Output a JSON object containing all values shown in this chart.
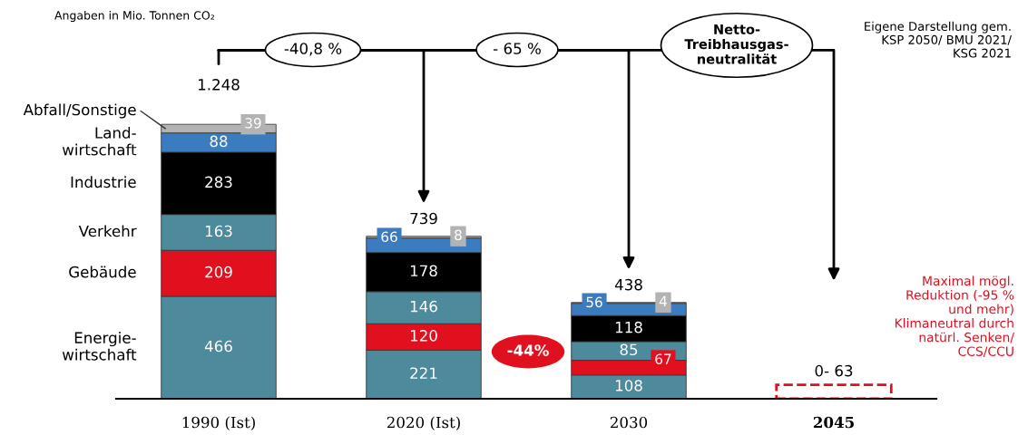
{
  "chart_data": {
    "type": "bar",
    "stacked": true,
    "categories": [
      "1990 (Ist)",
      "2020 (Ist)",
      "2030",
      "2045"
    ],
    "series": [
      {
        "name": "Energie-\nwirtschaft",
        "color": "#4d8a9c",
        "values": [
          466,
          221,
          108,
          null
        ]
      },
      {
        "name": "Gebäude",
        "color": "#e1101f",
        "values": [
          209,
          120,
          67,
          null
        ]
      },
      {
        "name": "Verkehr",
        "color": "#4d8a9c",
        "values": [
          163,
          146,
          85,
          null
        ]
      },
      {
        "name": "Industrie",
        "color": "#000000",
        "values": [
          283,
          178,
          118,
          null
        ]
      },
      {
        "name": "Land-\nwirtschaft",
        "color": "#3a7cbf",
        "values": [
          88,
          66,
          56,
          null
        ]
      },
      {
        "name": "Abfall/Sonstige",
        "color": "#b3b3b3",
        "values": [
          39,
          8,
          4,
          null
        ]
      },
      {
        "color": "#e1101f",
        "values": [
          null,
          null,
          null,
          63
        ],
        "value_labels": [
          null,
          null,
          null,
          "0- 63"
        ],
        "line_style": "dashed"
      }
    ],
    "data_labels": true,
    "totals": [
      "1.248",
      "739",
      "438",
      null
    ],
    "tick_labels": "x",
    "legend": "left",
    "annotations": [
      "Angaben in Mio. Tonnen CO₂",
      "Eigene Darstellung gem.\nKSP 2050/ BMU 2021/\nKSG 2021",
      "-40,8 %",
      "- 65 %",
      "Netto-\nTreibhausgas-\nneutralität",
      "-44%",
      "Maximal mögl.\nReduktion (-95 %\nund mehr)\nKlimaneutral durch\nnatürl. Senken/\nCCS/CCU"
    ]
  }
}
